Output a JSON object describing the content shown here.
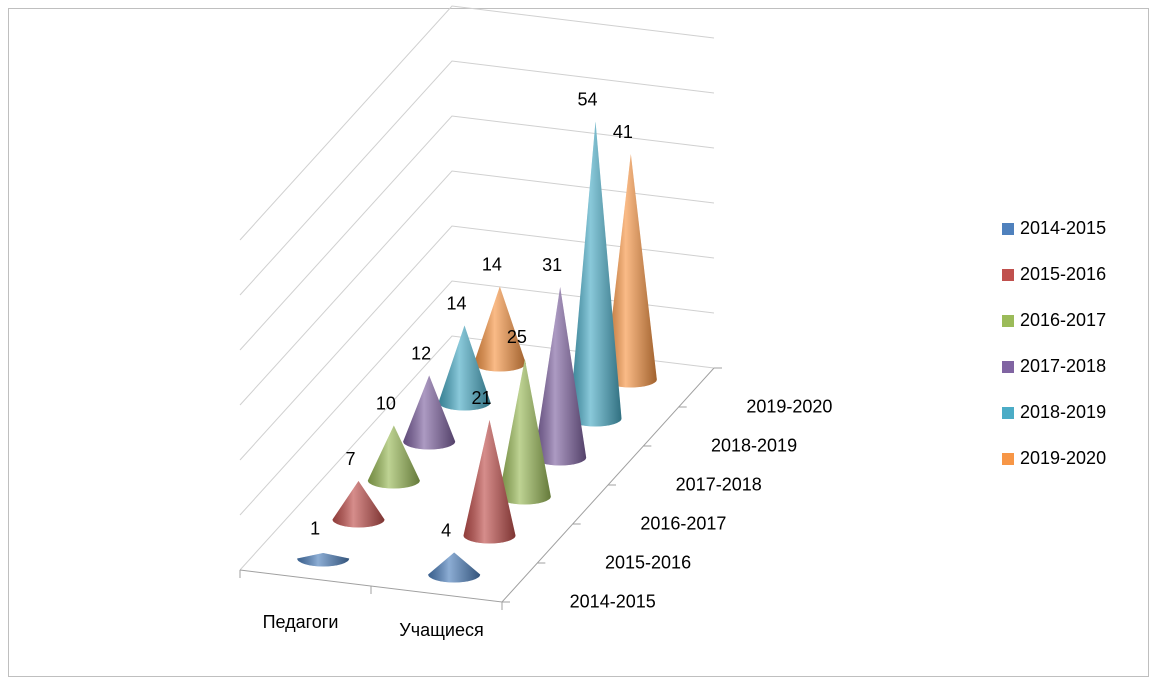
{
  "chart_data": {
    "type": "cone3d",
    "categories": [
      "Педагоги",
      "Учащиеся"
    ],
    "series": [
      {
        "name": "2014-2015",
        "color": "#4f81bd",
        "values": [
          1,
          4
        ]
      },
      {
        "name": "2015-2016",
        "color": "#c0504d",
        "values": [
          7,
          21
        ]
      },
      {
        "name": "2016-2017",
        "color": "#9bbb59",
        "values": [
          10,
          25
        ]
      },
      {
        "name": "2017-2018",
        "color": "#8064a2",
        "values": [
          12,
          31
        ]
      },
      {
        "name": "2018-2019",
        "color": "#4bacc6",
        "values": [
          14,
          54
        ]
      },
      {
        "name": "2019-2020",
        "color": "#f79646",
        "values": [
          14,
          41
        ]
      }
    ],
    "ylim": [
      0,
      60
    ],
    "yticks": [
      0,
      10,
      20,
      30,
      40,
      50,
      60
    ],
    "grid": true,
    "legend": "right"
  }
}
